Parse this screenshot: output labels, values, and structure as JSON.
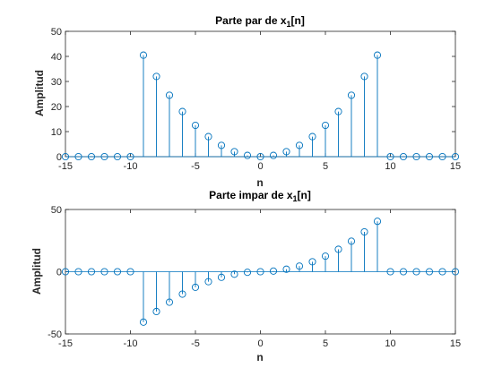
{
  "figure": {
    "background": "#ffffff",
    "stem_color": "#0072bd",
    "axis_color": "#262626"
  },
  "chart_data": [
    {
      "type": "stem",
      "title_main": "Parte par de x",
      "title_sub": "1",
      "title_tail": "[n]",
      "xlabel": "n",
      "ylabel": "Amplitud",
      "xlim": [
        -15,
        15
      ],
      "ylim": [
        0,
        50
      ],
      "xticks": [
        -15,
        -10,
        -5,
        0,
        5,
        10,
        15
      ],
      "yticks": [
        0,
        10,
        20,
        30,
        40,
        50
      ],
      "x": [
        -15,
        -14,
        -13,
        -12,
        -11,
        -10,
        -9,
        -8,
        -7,
        -6,
        -5,
        -4,
        -3,
        -2,
        -1,
        0,
        1,
        2,
        3,
        4,
        5,
        6,
        7,
        8,
        9,
        10,
        11,
        12,
        13,
        14,
        15
      ],
      "values": [
        0,
        0,
        0,
        0,
        0,
        0,
        40.5,
        32,
        24.5,
        18,
        12.5,
        8,
        4.5,
        2,
        0.5,
        0,
        0.5,
        2,
        4.5,
        8,
        12.5,
        18,
        24.5,
        32,
        40.5,
        0,
        0,
        0,
        0,
        0,
        0
      ]
    },
    {
      "type": "stem",
      "title_main": "Parte impar de x",
      "title_sub": "1",
      "title_tail": "[n]",
      "xlabel": "n",
      "ylabel": "Amplitud",
      "xlim": [
        -15,
        15
      ],
      "ylim": [
        -50,
        50
      ],
      "xticks": [
        -15,
        -10,
        -5,
        0,
        5,
        10,
        15
      ],
      "yticks": [
        -50,
        0,
        50
      ],
      "x": [
        -15,
        -14,
        -13,
        -12,
        -11,
        -10,
        -9,
        -8,
        -7,
        -6,
        -5,
        -4,
        -3,
        -2,
        -1,
        0,
        1,
        2,
        3,
        4,
        5,
        6,
        7,
        8,
        9,
        10,
        11,
        12,
        13,
        14,
        15
      ],
      "values": [
        0,
        0,
        0,
        0,
        0,
        0,
        -40.5,
        -32,
        -24.5,
        -18,
        -12.5,
        -8,
        -4.5,
        -2,
        -0.5,
        0,
        0.5,
        2,
        4.5,
        8,
        12.5,
        18,
        24.5,
        32,
        40.5,
        0,
        0,
        0,
        0,
        0,
        0
      ]
    }
  ]
}
